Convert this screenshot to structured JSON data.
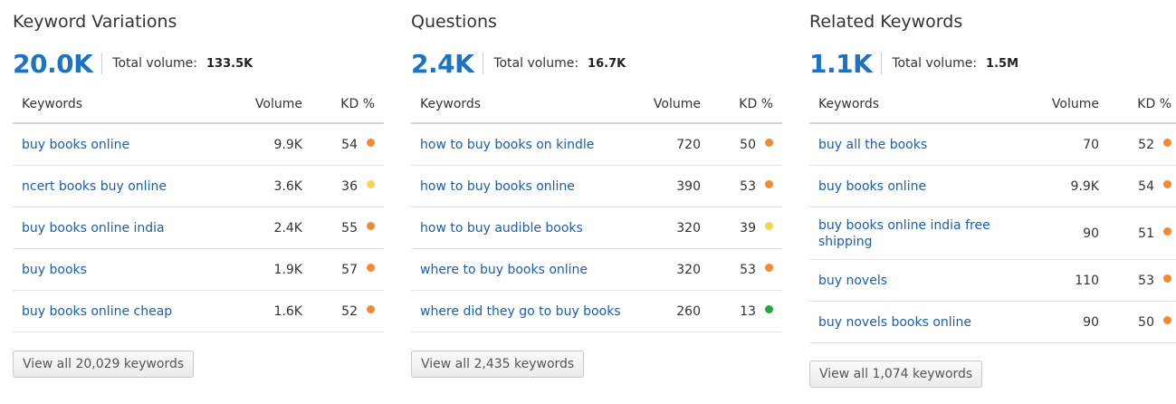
{
  "colors": {
    "accent": "#1a73c5",
    "link": "#1a5fa8",
    "kd_orange": "#f5892f",
    "kd_yellow": "#fcd34d",
    "kd_green": "#22a83a"
  },
  "table_headers": {
    "keywords": "Keywords",
    "volume": "Volume",
    "kd": "KD %"
  },
  "panels": [
    {
      "title": "Keyword Variations",
      "count": "20.0K",
      "total_label": "Total volume:",
      "total_value": "133.5K",
      "rows": [
        {
          "keyword": "buy books online",
          "volume": "9.9K",
          "kd": "54",
          "kd_color": "orange"
        },
        {
          "keyword": "ncert books buy online",
          "volume": "3.6K",
          "kd": "36",
          "kd_color": "yellow"
        },
        {
          "keyword": "buy books online india",
          "volume": "2.4K",
          "kd": "55",
          "kd_color": "orange"
        },
        {
          "keyword": "buy books",
          "volume": "1.9K",
          "kd": "57",
          "kd_color": "orange"
        },
        {
          "keyword": "buy books online cheap",
          "volume": "1.6K",
          "kd": "52",
          "kd_color": "orange"
        }
      ],
      "view_all": "View all 20,029 keywords"
    },
    {
      "title": "Questions",
      "count": "2.4K",
      "total_label": "Total volume:",
      "total_value": "16.7K",
      "rows": [
        {
          "keyword": "how to buy books on kindle",
          "volume": "720",
          "kd": "50",
          "kd_color": "orange"
        },
        {
          "keyword": "how to buy books online",
          "volume": "390",
          "kd": "53",
          "kd_color": "orange"
        },
        {
          "keyword": "how to buy audible books",
          "volume": "320",
          "kd": "39",
          "kd_color": "yellow"
        },
        {
          "keyword": "where to buy books online",
          "volume": "320",
          "kd": "53",
          "kd_color": "orange"
        },
        {
          "keyword": "where did they go to buy books",
          "volume": "260",
          "kd": "13",
          "kd_color": "green"
        }
      ],
      "view_all": "View all 2,435 keywords"
    },
    {
      "title": "Related Keywords",
      "count": "1.1K",
      "total_label": "Total volume:",
      "total_value": "1.5M",
      "rows": [
        {
          "keyword": "buy all the books",
          "volume": "70",
          "kd": "52",
          "kd_color": "orange"
        },
        {
          "keyword": "buy books online",
          "volume": "9.9K",
          "kd": "54",
          "kd_color": "orange"
        },
        {
          "keyword": "buy books online india free shipping",
          "volume": "90",
          "kd": "51",
          "kd_color": "orange"
        },
        {
          "keyword": "buy novels",
          "volume": "110",
          "kd": "53",
          "kd_color": "orange"
        },
        {
          "keyword": "buy novels books online",
          "volume": "90",
          "kd": "50",
          "kd_color": "orange"
        }
      ],
      "view_all": "View all 1,074 keywords"
    }
  ]
}
